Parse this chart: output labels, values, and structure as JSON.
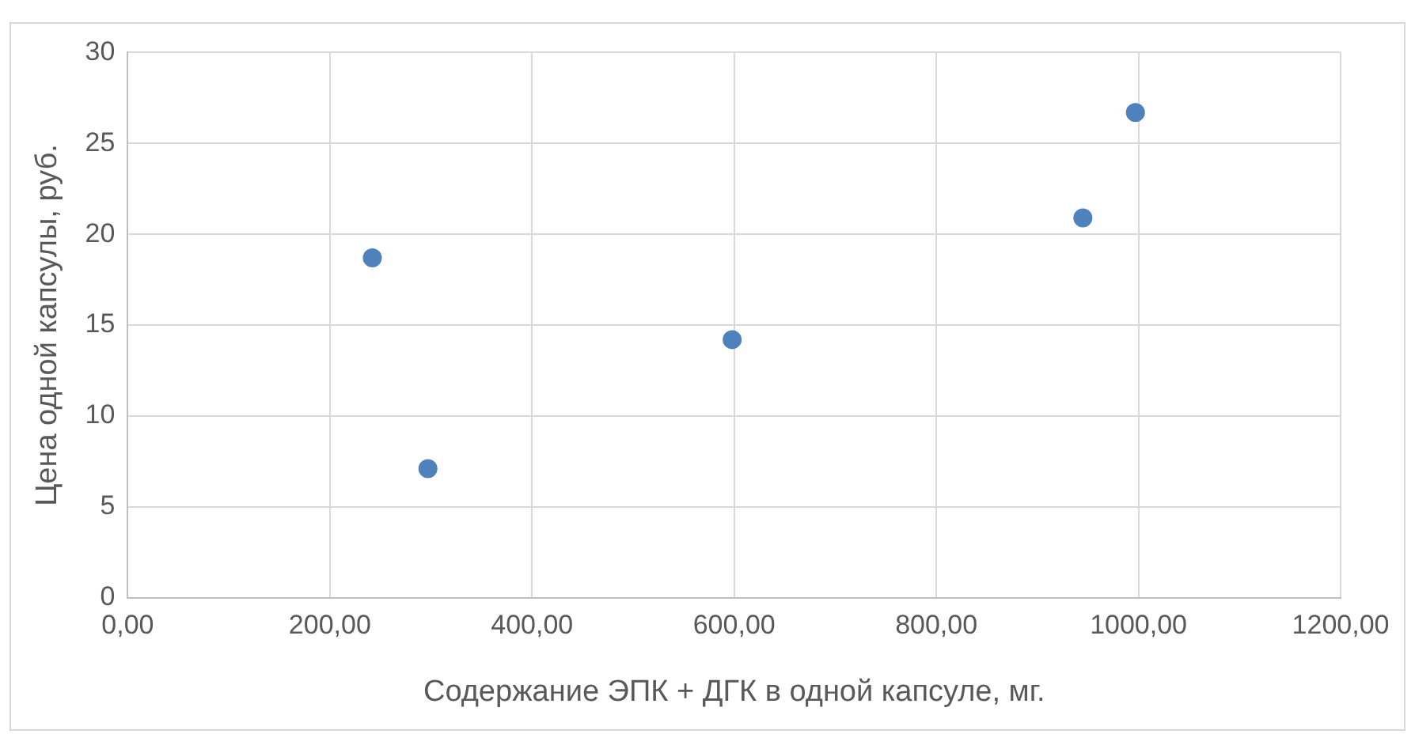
{
  "chart_data": {
    "type": "scatter",
    "xlabel": "Содержание ЭПК + ДГК в одной капсуле, мг.",
    "ylabel": "Цена одной капсулы, руб.",
    "x": [
      242,
      297,
      598,
      945,
      997
    ],
    "series": [
      {
        "color": "#4f81bd",
        "values": [
          18.7,
          7.1,
          14.2,
          20.9,
          26.7
        ]
      }
    ],
    "xlim": [
      0,
      1200
    ],
    "xticks": [
      {
        "value": 0,
        "label": "0,00"
      },
      {
        "value": 200,
        "label": "200,00"
      },
      {
        "value": 400,
        "label": "400,00"
      },
      {
        "value": 600,
        "label": "600,00"
      },
      {
        "value": 800,
        "label": "800,00"
      },
      {
        "value": 1000,
        "label": "1000,00"
      },
      {
        "value": 1200,
        "label": "1200,00"
      }
    ],
    "ylim": [
      0,
      30
    ],
    "yticks": [
      0,
      5,
      10,
      15,
      20,
      25,
      30
    ],
    "grid": true,
    "legend": false,
    "marker": "circle"
  }
}
